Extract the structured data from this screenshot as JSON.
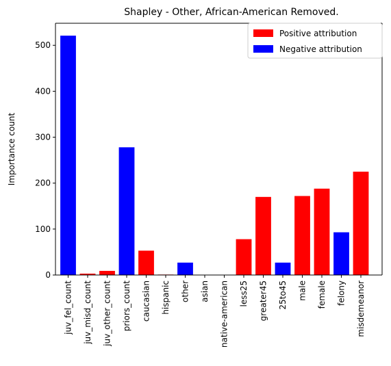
{
  "chart_data": {
    "type": "bar",
    "title": "Shapley - Other, African-American Removed.",
    "xlabel": "",
    "ylabel": "Importance count",
    "ylim": [
      0,
      548
    ],
    "yticks": [
      0,
      100,
      200,
      300,
      400,
      500
    ],
    "categories": [
      "juv_fel_count",
      "juv_misd_count",
      "juv_other_count",
      "priors_count",
      "caucasian",
      "hispanic",
      "other",
      "asian",
      "native-american",
      "less25",
      "greater45",
      "25to45",
      "male",
      "female",
      "felony",
      "misdemeanor"
    ],
    "values": [
      521,
      3,
      9,
      278,
      53,
      1,
      27,
      0,
      0,
      78,
      170,
      27,
      172,
      188,
      93,
      225
    ],
    "bar_attribution": [
      "negative",
      "positive",
      "positive",
      "negative",
      "positive",
      "positive",
      "negative",
      "positive",
      "positive",
      "positive",
      "positive",
      "negative",
      "positive",
      "positive",
      "negative",
      "positive"
    ],
    "legend": {
      "position": "top-right",
      "entries": [
        {
          "key": "positive",
          "label": "Positive attribution",
          "color": "#ff0000"
        },
        {
          "key": "negative",
          "label": "Negative attribution",
          "color": "#0000ff"
        }
      ]
    },
    "grid": false
  }
}
